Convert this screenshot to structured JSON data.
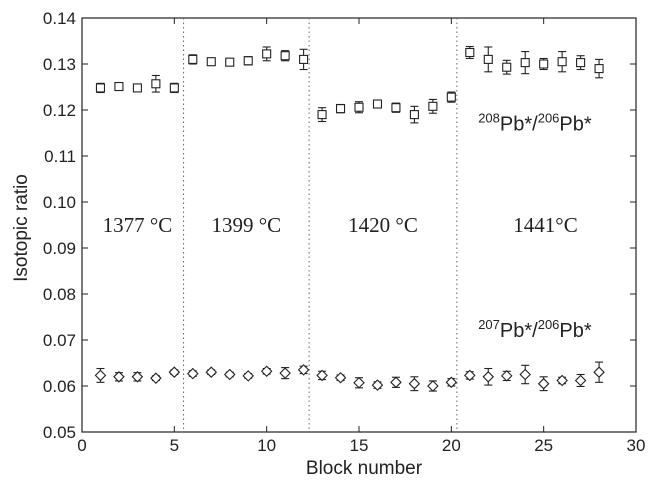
{
  "chart_data": {
    "type": "scatter",
    "xlabel": "Block number",
    "ylabel": "Isotopic ratio",
    "xlim": [
      0,
      30
    ],
    "ylim": [
      0.05,
      0.14
    ],
    "xticks": [
      "0",
      "5",
      "10",
      "15",
      "20",
      "25",
      "30"
    ],
    "yticks": [
      "0.05",
      "0.06",
      "0.07",
      "0.08",
      "0.09",
      "0.10",
      "0.11",
      "0.12",
      "0.13",
      "0.14"
    ],
    "grid": false,
    "marker_color": "#222222",
    "separators": [
      5.5,
      12.3,
      20.3
    ],
    "temperature_labels": [
      {
        "text": "1377 °C",
        "x": 3.0,
        "y": 0.0935
      },
      {
        "text": "1399 °C",
        "x": 8.9,
        "y": 0.0935
      },
      {
        "text": "1420 °C",
        "x": 16.3,
        "y": 0.0935
      },
      {
        "text": "1441°C",
        "x": 25.1,
        "y": 0.0935
      }
    ],
    "series": [
      {
        "label_mass_a": "208",
        "label_mass_b": "206",
        "label_elem": "Pb*",
        "marker": "square",
        "label_anchor": [
          27.6,
          0.1155
        ],
        "x": [
          1,
          2,
          3,
          4,
          5,
          6,
          7,
          8,
          9,
          10,
          11,
          12,
          13,
          14,
          15,
          16,
          17,
          18,
          19,
          20,
          21,
          22,
          23,
          24,
          25,
          26,
          27,
          28
        ],
        "y": [
          0.1248,
          0.1251,
          0.1248,
          0.1257,
          0.1248,
          0.131,
          0.1305,
          0.1304,
          0.1307,
          0.1322,
          0.1318,
          0.131,
          0.119,
          0.1203,
          0.1206,
          0.1213,
          0.1205,
          0.119,
          0.1208,
          0.1228,
          0.1325,
          0.131,
          0.1293,
          0.1303,
          0.13,
          0.1305,
          0.1303,
          0.129
        ],
        "err": [
          0.001,
          0.0008,
          0.0006,
          0.0018,
          0.001,
          0.001,
          0.0004,
          0.0004,
          0.0009,
          0.0015,
          0.0011,
          0.0022,
          0.0015,
          0.0009,
          0.0012,
          0.0007,
          0.001,
          0.0018,
          0.0015,
          0.0011,
          0.0013,
          0.0027,
          0.0015,
          0.0024,
          0.0012,
          0.0022,
          0.0015,
          0.002
        ]
      },
      {
        "label_mass_a": "207",
        "label_mass_b": "206",
        "label_elem": "Pb*",
        "marker": "diamond",
        "label_anchor": [
          27.6,
          0.0706
        ],
        "x": [
          1,
          2,
          3,
          4,
          5,
          6,
          7,
          8,
          9,
          10,
          11,
          12,
          13,
          14,
          15,
          16,
          17,
          18,
          19,
          20,
          21,
          22,
          23,
          24,
          25,
          26,
          27,
          28
        ],
        "y": [
          0.0623,
          0.062,
          0.062,
          0.0617,
          0.063,
          0.0627,
          0.063,
          0.0625,
          0.0622,
          0.0632,
          0.0628,
          0.0635,
          0.0623,
          0.0618,
          0.0607,
          0.0602,
          0.0608,
          0.0605,
          0.06,
          0.0608,
          0.0623,
          0.062,
          0.0622,
          0.0625,
          0.0605,
          0.0612,
          0.0612,
          0.063
        ],
        "err": [
          0.0015,
          0.0009,
          0.0009,
          0.0005,
          0.0005,
          0.0006,
          0.0005,
          0.0005,
          0.0005,
          0.0006,
          0.0012,
          0.0008,
          0.0009,
          0.0006,
          0.0011,
          0.0007,
          0.0011,
          0.0015,
          0.0011,
          0.0008,
          0.0008,
          0.0018,
          0.001,
          0.002,
          0.0015,
          0.0007,
          0.0013,
          0.0022
        ]
      }
    ]
  }
}
